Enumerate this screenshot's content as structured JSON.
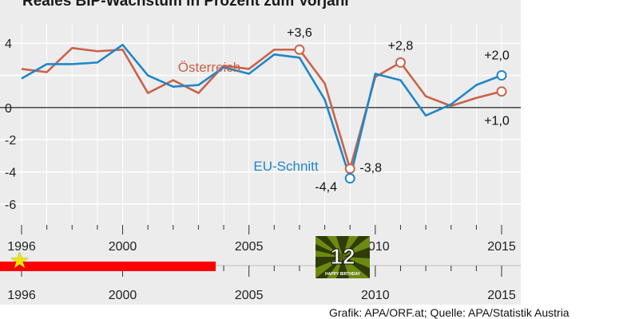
{
  "title": "Reales BIP-Wachstum in Prozent zum Vorjahr",
  "credit": "Grafik: APA/ORF.at; Quelle: APA/Statistik Austria",
  "badge": {
    "number": "12",
    "caption": "HAPPY BIRTHDAY"
  },
  "timeline": {
    "tick_labels": [
      "1996",
      "2000",
      "2005",
      "2010",
      "2015"
    ],
    "progress_start": 1996,
    "progress_end": 2004,
    "star_year": 1996,
    "colors": {
      "bar": "#ff0000",
      "star": "#f2e600"
    }
  },
  "chart_data": {
    "type": "line",
    "title": "Reales BIP-Wachstum in Prozent zum Vorjahr",
    "xlabel": "",
    "ylabel": "",
    "x": [
      1996,
      1997,
      1998,
      1999,
      2000,
      2001,
      2002,
      2003,
      2004,
      2005,
      2006,
      2007,
      2008,
      2009,
      2010,
      2011,
      2012,
      2013,
      2014,
      2015
    ],
    "x_tick_labels": [
      "1996",
      "2000",
      "2005",
      "2010",
      "2015"
    ],
    "x_ticks": [
      1996,
      2000,
      2005,
      2010,
      2015
    ],
    "y_tick_labels": [
      "4",
      "0",
      "-2",
      "-4",
      "-6"
    ],
    "y_ticks": [
      4,
      0,
      -2,
      -4,
      -6
    ],
    "xlim": [
      1996,
      2015
    ],
    "ylim": [
      -6.5,
      5
    ],
    "grid": true,
    "series": [
      {
        "name": "Österreich",
        "color": "#c8634a",
        "values": [
          2.4,
          2.2,
          3.7,
          3.5,
          3.6,
          0.9,
          1.7,
          0.9,
          2.6,
          2.4,
          3.6,
          3.6,
          1.5,
          -3.8,
          1.9,
          2.8,
          0.7,
          0.1,
          0.6,
          1.0
        ]
      },
      {
        "name": "EU-Schnitt",
        "color": "#1e87c8",
        "values": [
          1.8,
          2.7,
          2.7,
          2.8,
          3.9,
          2.0,
          1.3,
          1.4,
          2.5,
          2.1,
          3.3,
          3.1,
          0.5,
          -4.4,
          2.1,
          1.7,
          -0.5,
          0.2,
          1.4,
          2.0
        ]
      }
    ],
    "annotations": [
      {
        "series": 0,
        "x": 2007,
        "text": "+3,6"
      },
      {
        "series": 0,
        "x": 2011,
        "text": "+2,8"
      },
      {
        "series": 0,
        "x": 2009,
        "text": "-3,8"
      },
      {
        "series": 1,
        "x": 2009,
        "text": "-4,4"
      },
      {
        "series": 1,
        "x": 2015,
        "text": "+2,0"
      },
      {
        "series": 0,
        "x": 2015,
        "text": "+1,0"
      }
    ]
  }
}
